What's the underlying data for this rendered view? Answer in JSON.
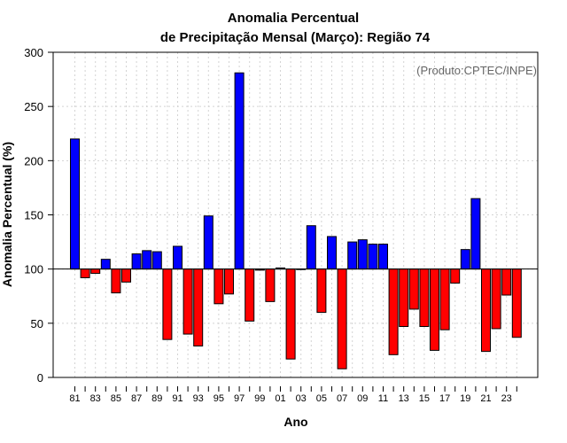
{
  "chart_data": {
    "type": "bar",
    "title_line1": "Anomalia Percentual",
    "title_line2": "de Precipitação Mensal (Março): Região 74",
    "xlabel": "Ano",
    "ylabel": "Anomalia Percentual (%)",
    "credit": "(Produto:CPTEC/INPE)",
    "baseline": 100,
    "ylim": [
      0,
      300
    ],
    "yticks": [
      0,
      50,
      100,
      150,
      200,
      250,
      300
    ],
    "grid": true,
    "colors": {
      "above": "#0000ff",
      "below": "#ff0000",
      "outline": "#000000",
      "grid": "#d3d3d3"
    },
    "categories": [
      "81",
      "82",
      "83",
      "84",
      "85",
      "86",
      "87",
      "88",
      "89",
      "90",
      "91",
      "92",
      "93",
      "94",
      "95",
      "96",
      "97",
      "98",
      "99",
      "00",
      "01",
      "02",
      "03",
      "04",
      "05",
      "06",
      "07",
      "08",
      "09",
      "10",
      "11",
      "12",
      "13",
      "14",
      "15",
      "16",
      "17",
      "18",
      "19",
      "20",
      "21",
      "22",
      "23",
      "24"
    ],
    "xtick_labels": [
      "81",
      "83",
      "85",
      "87",
      "89",
      "91",
      "93",
      "95",
      "97",
      "99",
      "01",
      "03",
      "05",
      "07",
      "09",
      "11",
      "13",
      "15",
      "17",
      "19",
      "21",
      "23"
    ],
    "values": [
      220,
      92,
      96,
      109,
      78,
      88,
      114,
      117,
      116,
      35,
      121,
      40,
      29,
      149,
      68,
      77,
      281,
      52,
      99,
      70,
      101,
      17,
      100,
      140,
      60,
      130,
      8,
      125,
      127,
      123,
      123,
      21,
      47,
      63,
      47,
      25,
      44,
      87,
      118,
      165,
      24,
      45,
      76,
      37
    ]
  }
}
